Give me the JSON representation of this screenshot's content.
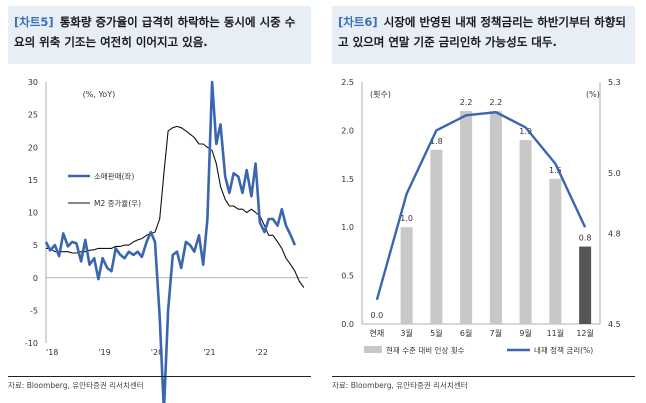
{
  "left": {
    "header": {
      "tag": "[차트5]",
      "title": "통화량 증가율이 급격히 하락하는 동시에 시중 수요의 위축 기조는 여전히 이어지고 있음."
    },
    "source": "자료: Bloomberg, 유안타증권 리서치센터",
    "chart_data": {
      "type": "line",
      "unit_label": "(%, YoY)",
      "ylim": [
        -10,
        30
      ],
      "y_ticks": [
        -10,
        -5,
        0,
        5,
        10,
        15,
        20,
        25,
        30
      ],
      "x_ticks": [
        "'18",
        "'19",
        "'20",
        "'21",
        "'22"
      ],
      "legend_position": "upper-middle-left",
      "series": [
        {
          "name": "소매판매(좌)",
          "color": "#3a66b0",
          "x": [
            2018.0,
            2018.08,
            2018.17,
            2018.25,
            2018.33,
            2018.42,
            2018.5,
            2018.58,
            2018.67,
            2018.75,
            2018.83,
            2018.92,
            2019.0,
            2019.08,
            2019.17,
            2019.25,
            2019.33,
            2019.42,
            2019.5,
            2019.58,
            2019.67,
            2019.75,
            2019.83,
            2019.92,
            2020.0,
            2020.08,
            2020.17,
            2020.25,
            2020.33,
            2020.42,
            2020.5,
            2020.58,
            2020.67,
            2020.75,
            2020.83,
            2020.92,
            2021.0,
            2021.08,
            2021.17,
            2021.25,
            2021.33,
            2021.42,
            2021.5,
            2021.58,
            2021.67,
            2021.75,
            2021.83,
            2021.92,
            2022.0,
            2022.08,
            2022.17,
            2022.25,
            2022.33,
            2022.42,
            2022.5,
            2022.58,
            2022.67,
            2022.75,
            2022.83,
            2022.92
          ],
          "values": [
            5.5,
            4.2,
            5.0,
            3.3,
            6.8,
            4.8,
            5.5,
            5.3,
            2.5,
            5.8,
            2.0,
            3.0,
            -0.2,
            3.0,
            1.5,
            1.0,
            4.5,
            3.5,
            3.0,
            4.0,
            3.5,
            4.0,
            3.2,
            5.5,
            7.0,
            5.5,
            -6.0,
            -20.5,
            -5.0,
            3.5,
            4.0,
            1.5,
            5.5,
            5.0,
            4.0,
            6.5,
            2.0,
            9.0,
            30.0,
            20.5,
            23.5,
            15.5,
            13.0,
            16.0,
            15.5,
            13.0,
            16.5,
            12.5,
            17.5,
            8.5,
            7.0,
            9.0,
            9.0,
            8.0,
            10.5,
            8.0,
            6.5,
            5.0,
            0,
            0
          ]
        },
        {
          "name": "M2 증가율(우)",
          "color": "#111111",
          "x": [
            2018.0,
            2018.08,
            2018.17,
            2018.25,
            2018.33,
            2018.42,
            2018.5,
            2018.58,
            2018.67,
            2018.75,
            2018.83,
            2018.92,
            2019.0,
            2019.08,
            2019.17,
            2019.25,
            2019.33,
            2019.42,
            2019.5,
            2019.58,
            2019.67,
            2019.75,
            2019.83,
            2019.92,
            2020.0,
            2020.08,
            2020.17,
            2020.25,
            2020.33,
            2020.42,
            2020.5,
            2020.58,
            2020.67,
            2020.75,
            2020.83,
            2020.92,
            2021.0,
            2021.08,
            2021.17,
            2021.25,
            2021.33,
            2021.42,
            2021.5,
            2021.58,
            2021.67,
            2021.75,
            2021.83,
            2021.92,
            2022.0,
            2022.08,
            2022.17,
            2022.25,
            2022.33,
            2022.42,
            2022.5,
            2022.58,
            2022.67,
            2022.75,
            2022.83,
            2022.92
          ],
          "values": [
            4.5,
            4.5,
            4.0,
            4.0,
            4.0,
            4.0,
            3.8,
            3.8,
            4.0,
            4.0,
            4.2,
            4.3,
            4.5,
            4.5,
            4.5,
            4.5,
            4.8,
            4.8,
            5.0,
            5.0,
            5.5,
            5.8,
            6.0,
            6.5,
            6.8,
            7.0,
            9.0,
            16.0,
            22.5,
            23.0,
            23.2,
            23.0,
            22.5,
            22.0,
            21.5,
            20.5,
            20.5,
            20.0,
            19.5,
            17.5,
            14.0,
            12.0,
            11.0,
            11.0,
            10.5,
            10.5,
            10.0,
            10.5,
            10.0,
            9.5,
            8.0,
            6.5,
            6.5,
            5.5,
            4.5,
            3.0,
            2.0,
            1.0,
            -0.5,
            -1.5
          ]
        }
      ]
    }
  },
  "right": {
    "header": {
      "tag": "[차트6]",
      "title": "시장에 반영된 내재 정책금리는 하반기부터 하향되고 있으며 연말 기준 금리인하 가능성도 대두."
    },
    "source": "자료: Bloomberg, 유안타증권 리서치센터",
    "chart_data": {
      "type": "bar+line",
      "left_unit": "(횟수)",
      "right_unit": "(%)",
      "left_ylim": [
        0.0,
        2.5
      ],
      "left_ticks": [
        0.0,
        0.5,
        1.0,
        1.5,
        2.0,
        2.5
      ],
      "right_ylim": [
        4.5,
        5.3
      ],
      "right_ticks": [
        4.5,
        4.8,
        5.0,
        5.3
      ],
      "categories": [
        "현재",
        "3월",
        "5월",
        "6월",
        "7월",
        "9월",
        "11월",
        "12월"
      ],
      "bar_values": [
        0.0,
        1.0,
        1.8,
        2.2,
        2.2,
        1.9,
        1.5,
        0.8
      ],
      "bar_labels": [
        "0.0",
        "1.0",
        "1.8",
        "2.2",
        "2.2",
        "1.9",
        "1.5",
        "0.8"
      ],
      "bar_color": "#c8c8c8",
      "highlight_color": "#555555",
      "line_values": [
        4.58,
        4.93,
        5.14,
        5.19,
        5.2,
        5.15,
        5.03,
        4.82
      ],
      "line_color": "#3a66b0",
      "legend": {
        "bars": "현재 수준 대비 인상 횟수",
        "line": "내재 정책 금리(%)"
      },
      "legend_position": "bottom"
    }
  }
}
